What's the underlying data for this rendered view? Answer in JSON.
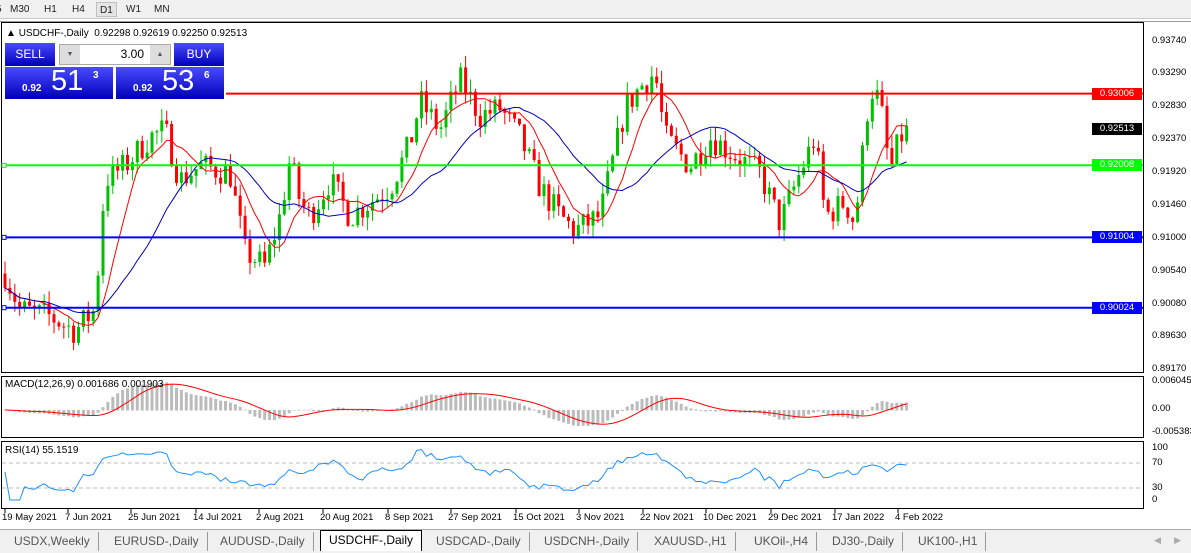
{
  "toolbar": {
    "timeframes": [
      "5",
      "M30",
      "H1",
      "H4",
      "D1",
      "W1",
      "MN"
    ],
    "active": "D1"
  },
  "chart": {
    "symbol_line": "USDCHF-,Daily",
    "ohlc": "0.92298 0.92619 0.92250 0.92513",
    "trade": {
      "sell_label": "SELL",
      "buy_label": "BUY",
      "volume": "3.00",
      "sell_prefix": "0.92",
      "sell_big": "51",
      "sell_sup": "3",
      "buy_prefix": "0.92",
      "buy_big": "53",
      "buy_sup": "6"
    },
    "price_axis": [
      "0.93740",
      "0.93290",
      "0.92830",
      "0.92370",
      "0.91920",
      "0.91460",
      "0.91000",
      "0.90540",
      "0.90080",
      "0.89630",
      "0.89170"
    ],
    "levels": [
      {
        "price": "0.93006",
        "color": "#ff0000"
      },
      {
        "price": "0.92008",
        "color": "#00ff00"
      },
      {
        "price": "0.91004",
        "color": "#0000ff"
      },
      {
        "price": "0.90024",
        "color": "#0000ff"
      }
    ],
    "current_price": "0.92513",
    "colors": {
      "bull": "#00c000",
      "bear": "#ff0000",
      "ma_fast": "#ff0000",
      "ma_slow": "#0000c0"
    }
  },
  "macd": {
    "label": "MACD(12,26,9) 0.001686 0.001903",
    "axis": [
      "0.006045",
      "0.00",
      "-0.005383"
    ]
  },
  "rsi": {
    "label": "RSI(14) 55.1519",
    "axis": [
      "100",
      "70",
      "30",
      "0"
    ]
  },
  "dates": [
    "19 May 2021",
    "7 Jun 2021",
    "25 Jun 2021",
    "14 Jul 2021",
    "2 Aug 2021",
    "20 Aug 2021",
    "8 Sep 2021",
    "27 Sep 2021",
    "15 Oct 2021",
    "3 Nov 2021",
    "22 Nov 2021",
    "10 Dec 2021",
    "29 Dec 2021",
    "17 Jan 2022",
    "4 Feb 2022"
  ],
  "tabs": [
    "USDX,Weekly",
    "EURUSD-,Daily",
    "AUDUSD-,Daily",
    "USDCHF-,Daily",
    "USDCAD-,Daily",
    "USDCNH-,Daily",
    "XAUUSD-,H1",
    "UKOil-,H4",
    "DJ30-,Daily",
    "UK100-,H1"
  ],
  "active_tab": "USDCHF-,Daily"
}
